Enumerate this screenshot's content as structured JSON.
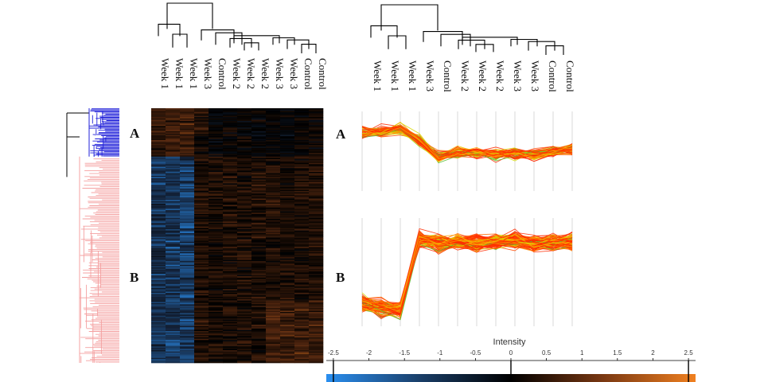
{
  "chart_data": [
    {
      "type": "heatmap",
      "columns": [
        "Week 1",
        "Week 1",
        "Week 1",
        "Week 3",
        "Control",
        "Week 2",
        "Week 2",
        "Week 2",
        "Week 3",
        "Week 3",
        "Control",
        "Control"
      ],
      "clusters": [
        "A",
        "B"
      ],
      "cluster_colors": {
        "A": "#1f1fd9",
        "B": "#f4a0a0"
      },
      "row_dendrogram": true,
      "column_dendrogram": true
    },
    {
      "type": "line",
      "panel": "A",
      "categories": [
        "Week 1",
        "Week 1",
        "Week 1",
        "Week 3",
        "Control",
        "Week 2",
        "Week 2",
        "Week 2",
        "Week 3",
        "Week 3",
        "Control",
        "Control"
      ],
      "profile_mean": [
        1.0,
        1.05,
        1.2,
        0.6,
        -0.2,
        0.05,
        0.0,
        -0.05,
        0.0,
        -0.1,
        0.1,
        0.2
      ],
      "profile_spread": 0.35,
      "n_lines": 60
    },
    {
      "type": "line",
      "panel": "B",
      "categories": [
        "Week 1",
        "Week 1",
        "Week 1",
        "Week 3",
        "Control",
        "Week 2",
        "Week 2",
        "Week 2",
        "Week 3",
        "Week 3",
        "Control",
        "Control"
      ],
      "profile_mean": [
        -2.0,
        -2.2,
        -2.3,
        0.7,
        0.5,
        0.6,
        0.55,
        0.6,
        0.65,
        0.5,
        0.55,
        0.6
      ],
      "profile_spread": 0.45,
      "n_lines": 110
    },
    {
      "type": "colorbar",
      "title": "Intensity",
      "ticks": [
        -2.5,
        -2,
        -1.5,
        -1,
        -0.5,
        0,
        0.5,
        1,
        1.5,
        2,
        2.5
      ],
      "tick_labels": [
        "-2.5",
        "-2",
        "-1.5",
        "-1",
        "-0.5",
        "0",
        "0.5",
        "1",
        "1.5",
        "2",
        "2.5"
      ],
      "range": [
        -2.6,
        2.6
      ],
      "colors": [
        "#2a8ff0",
        "#14233a",
        "#000000",
        "#5a2a10",
        "#f08020"
      ]
    }
  ]
}
